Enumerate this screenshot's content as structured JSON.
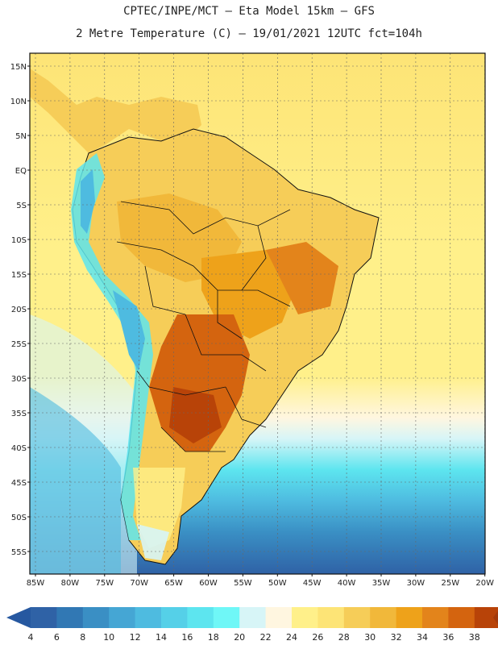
{
  "title_line1": "CPTEC/INPE/MCT –  Eta Model 15km – GFS",
  "title_line2": "2 Metre Temperature (C) – 19/01/2021 12UTC fct=104h",
  "lat_labels": [
    "15N",
    "10N",
    "5N",
    "EQ",
    "5S",
    "10S",
    "15S",
    "20S",
    "25S",
    "30S",
    "35S",
    "40S",
    "45S",
    "50S",
    "55S"
  ],
  "lon_labels": [
    "85W",
    "80W",
    "75W",
    "70W",
    "65W",
    "60W",
    "55W",
    "50W",
    "45W",
    "40W",
    "35W",
    "30W",
    "25W",
    "20W"
  ],
  "colorbar": {
    "labels": [
      "4",
      "6",
      "8",
      "10",
      "12",
      "14",
      "16",
      "18",
      "20",
      "22",
      "24",
      "26",
      "28",
      "30",
      "32",
      "34",
      "36",
      "38"
    ],
    "colors": [
      "#2f62a6",
      "#3178b4",
      "#3a8fc4",
      "#45a6d4",
      "#4ebbe0",
      "#55d0e8",
      "#5de5ef",
      "#6ff7f7",
      "#d7f5f7",
      "#fff6e0",
      "#fff08a",
      "#fde476",
      "#f6cd58",
      "#f1b83a",
      "#eea21a",
      "#e3841b",
      "#d4640f",
      "#b84308"
    ],
    "left_color": "#2658a0",
    "right_color": "#a3390a"
  },
  "colors": {
    "ocean_north": "#fde476",
    "ocean_mid": "#fff08a",
    "land_base": "#f6cd58",
    "land_hot": "#d4640f",
    "andes": "#5de5ef"
  }
}
